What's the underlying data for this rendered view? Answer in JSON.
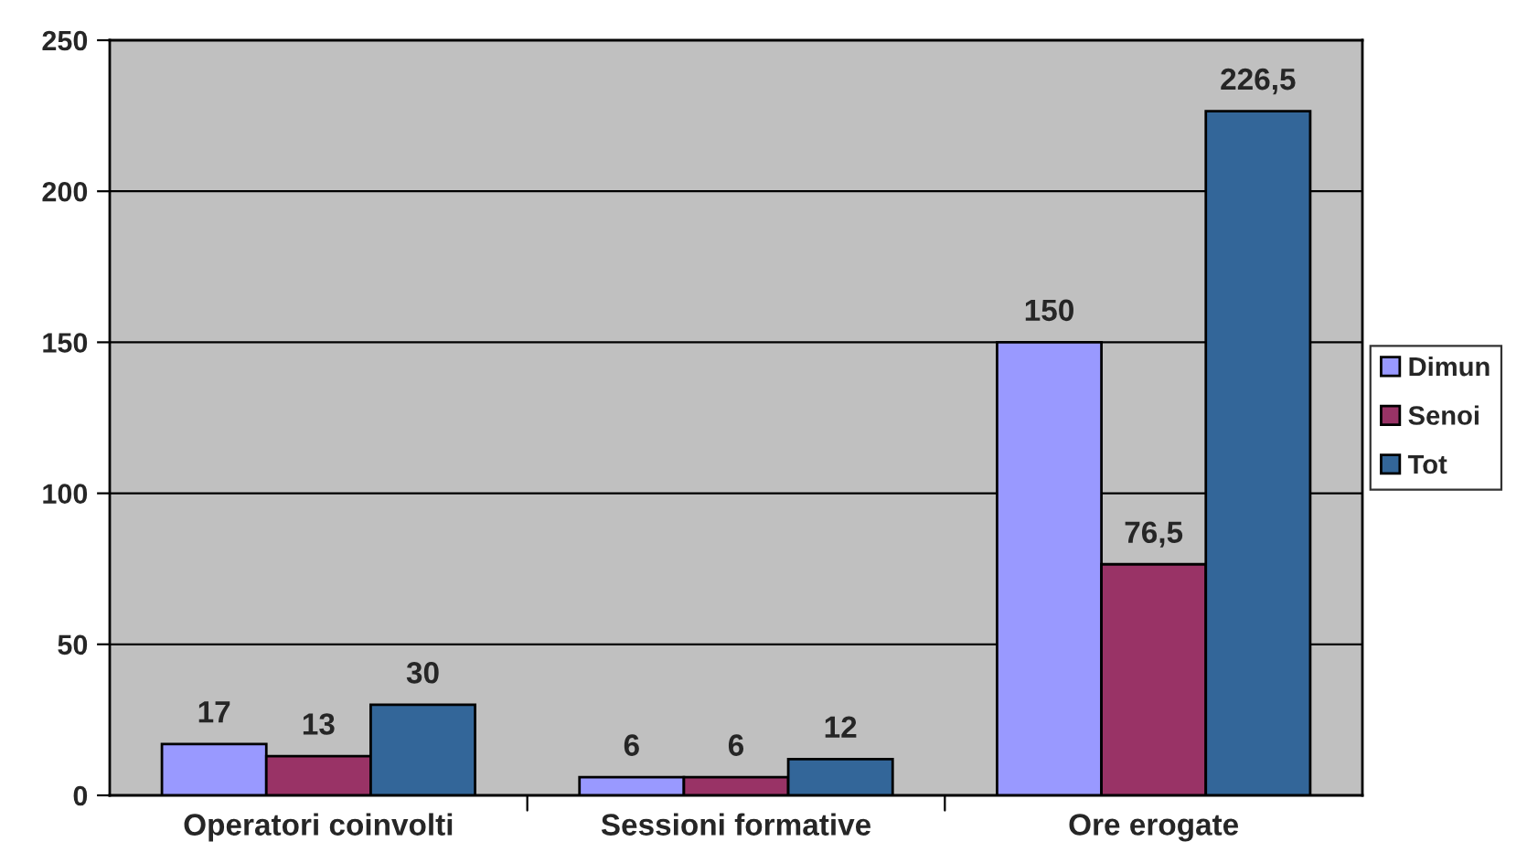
{
  "chart_data": {
    "type": "bar",
    "categories": [
      "Operatori coinvolti",
      "Sessioni formative",
      "Ore erogate"
    ],
    "series": [
      {
        "name": "Dimun",
        "color": "#9999ff",
        "values": [
          17,
          6,
          150
        ],
        "value_labels": [
          "17",
          "6",
          "150"
        ]
      },
      {
        "name": "Senoi",
        "color": "#993366",
        "values": [
          13,
          6,
          76.5
        ],
        "value_labels": [
          "13",
          "6",
          "76,5"
        ]
      },
      {
        "name": "Tot",
        "color": "#336699",
        "values": [
          30,
          12,
          226.5
        ],
        "value_labels": [
          "30",
          "12",
          "226,5"
        ]
      }
    ],
    "ylim": [
      0,
      250
    ],
    "yticks": [
      0,
      50,
      100,
      150,
      200,
      250
    ],
    "grid": "y",
    "legend": "right"
  }
}
